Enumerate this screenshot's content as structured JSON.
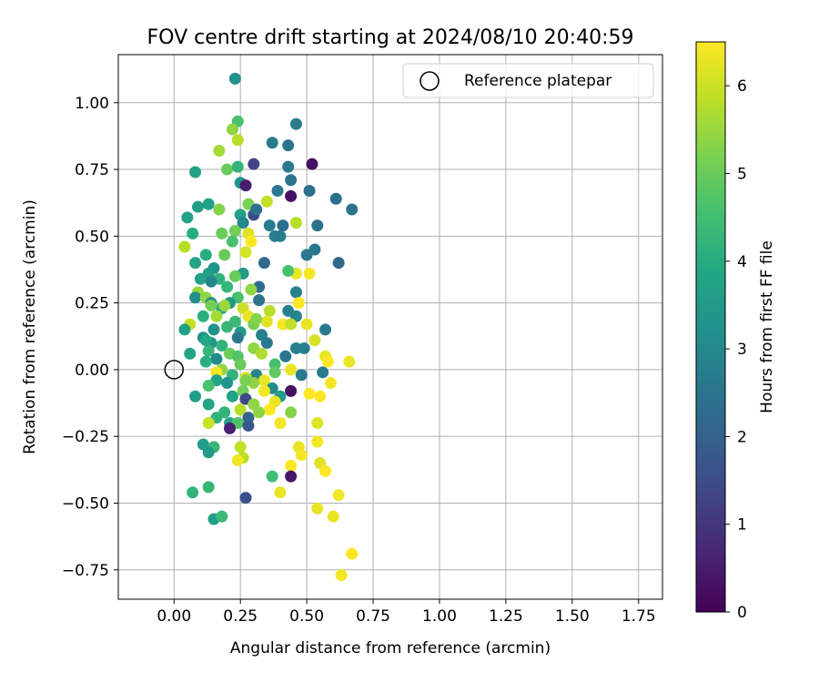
{
  "chart_data": {
    "type": "scatter",
    "title": "FOV centre drift starting at 2024/08/10 20:40:59",
    "xlabel": "Angular distance from reference (arcmin)",
    "ylabel": "Rotation from reference (arcmin)",
    "xlim": [
      -0.21,
      1.84
    ],
    "ylim": [
      -0.86,
      1.18
    ],
    "xticks": [
      0.0,
      0.25,
      0.5,
      0.75,
      1.0,
      1.25,
      1.5,
      1.75
    ],
    "xtick_labels": [
      "0.00",
      "0.25",
      "0.50",
      "0.75",
      "1.00",
      "1.25",
      "1.50",
      "1.75"
    ],
    "yticks": [
      -0.75,
      -0.5,
      -0.25,
      0.0,
      0.25,
      0.5,
      0.75,
      1.0
    ],
    "ytick_labels": [
      "−0.75",
      "−0.50",
      "−0.25",
      "0.00",
      "0.25",
      "0.50",
      "0.75",
      "1.00"
    ],
    "grid": true,
    "legend": {
      "position": "top-right",
      "entries": [
        "Reference platepar"
      ]
    },
    "reference_point": {
      "x": 0.0,
      "y": 0.0,
      "label": "Reference platepar"
    },
    "colorbar": {
      "label": "Hours from first FF file",
      "colormap": "viridis",
      "range": [
        0,
        6.5
      ],
      "ticks": [
        0,
        1,
        2,
        3,
        4,
        5,
        6
      ]
    },
    "points": [
      [
        0.23,
        1.09,
        3.2
      ],
      [
        0.24,
        0.93,
        4.6
      ],
      [
        0.22,
        0.9,
        5.4
      ],
      [
        0.24,
        0.86,
        5.8
      ],
      [
        0.46,
        0.92,
        2.7
      ],
      [
        0.37,
        0.85,
        2.7
      ],
      [
        0.43,
        0.84,
        2.5
      ],
      [
        0.17,
        0.82,
        5.6
      ],
      [
        0.52,
        0.77,
        0.3
      ],
      [
        0.3,
        0.77,
        1.3
      ],
      [
        0.2,
        0.75,
        5.0
      ],
      [
        0.24,
        0.76,
        4.2
      ],
      [
        0.08,
        0.74,
        3.7
      ],
      [
        0.43,
        0.76,
        2.6
      ],
      [
        0.44,
        0.71,
        2.5
      ],
      [
        0.25,
        0.7,
        3.3
      ],
      [
        0.27,
        0.69,
        0.5
      ],
      [
        0.39,
        0.67,
        2.6
      ],
      [
        0.51,
        0.67,
        2.4
      ],
      [
        0.44,
        0.65,
        0.3
      ],
      [
        0.61,
        0.64,
        2.4
      ],
      [
        0.67,
        0.6,
        2.5
      ],
      [
        0.35,
        0.63,
        5.9
      ],
      [
        0.28,
        0.62,
        5.2
      ],
      [
        0.13,
        0.62,
        3.7
      ],
      [
        0.09,
        0.61,
        3.6
      ],
      [
        0.3,
        0.58,
        1.5
      ],
      [
        0.17,
        0.6,
        5.3
      ],
      [
        0.25,
        0.58,
        3.7
      ],
      [
        0.31,
        0.6,
        2.4
      ],
      [
        0.05,
        0.57,
        3.7
      ],
      [
        0.26,
        0.55,
        3.0
      ],
      [
        0.46,
        0.55,
        5.8
      ],
      [
        0.41,
        0.54,
        2.3
      ],
      [
        0.54,
        0.54,
        2.4
      ],
      [
        0.36,
        0.54,
        2.7
      ],
      [
        0.23,
        0.52,
        5.1
      ],
      [
        0.18,
        0.51,
        5.0
      ],
      [
        0.07,
        0.51,
        4.0
      ],
      [
        0.28,
        0.51,
        6.2
      ],
      [
        0.38,
        0.5,
        2.8
      ],
      [
        0.4,
        0.5,
        2.7
      ],
      [
        0.29,
        0.48,
        6.5
      ],
      [
        0.04,
        0.46,
        5.8
      ],
      [
        0.53,
        0.45,
        2.6
      ],
      [
        0.12,
        0.43,
        4.0
      ],
      [
        0.19,
        0.43,
        5.0
      ],
      [
        0.27,
        0.44,
        6.1
      ],
      [
        0.5,
        0.43,
        2.6
      ],
      [
        0.62,
        0.4,
        2.2
      ],
      [
        0.08,
        0.4,
        3.8
      ],
      [
        0.34,
        0.4,
        2.2
      ],
      [
        0.15,
        0.38,
        3.4
      ],
      [
        0.46,
        0.36,
        6.3
      ],
      [
        0.51,
        0.36,
        6.4
      ],
      [
        0.43,
        0.37,
        4.6
      ],
      [
        0.13,
        0.36,
        3.6
      ],
      [
        0.26,
        0.36,
        3.5
      ],
      [
        0.23,
        0.35,
        5.0
      ],
      [
        0.1,
        0.34,
        3.7
      ],
      [
        0.17,
        0.34,
        4.2
      ],
      [
        0.14,
        0.33,
        3.0
      ],
      [
        0.32,
        0.31,
        2.3
      ],
      [
        0.29,
        0.3,
        5.4
      ],
      [
        0.46,
        0.29,
        2.8
      ],
      [
        0.09,
        0.29,
        5.5
      ],
      [
        0.08,
        0.27,
        3.2
      ],
      [
        0.12,
        0.27,
        5.4
      ],
      [
        0.24,
        0.27,
        4.6
      ],
      [
        0.21,
        0.25,
        3.5
      ],
      [
        0.32,
        0.26,
        2.5
      ],
      [
        0.47,
        0.25,
        6.5
      ],
      [
        0.14,
        0.25,
        3.1
      ],
      [
        0.26,
        0.23,
        6.0
      ],
      [
        0.18,
        0.23,
        3.9
      ],
      [
        0.36,
        0.22,
        5.8
      ],
      [
        0.43,
        0.22,
        2.8
      ],
      [
        0.28,
        0.2,
        6.3
      ],
      [
        0.46,
        0.2,
        2.9
      ],
      [
        0.11,
        0.2,
        4.1
      ],
      [
        0.16,
        0.2,
        5.6
      ],
      [
        0.23,
        0.18,
        4.4
      ],
      [
        0.35,
        0.18,
        6.2
      ],
      [
        0.3,
        0.17,
        5.2
      ],
      [
        0.41,
        0.17,
        6.4
      ],
      [
        0.44,
        0.17,
        5.9
      ],
      [
        0.5,
        0.17,
        6.3
      ],
      [
        0.06,
        0.17,
        5.9
      ],
      [
        0.2,
        0.16,
        4.3
      ],
      [
        0.04,
        0.15,
        3.7
      ],
      [
        0.57,
        0.15,
        2.7
      ],
      [
        0.15,
        0.15,
        3.3
      ],
      [
        0.25,
        0.14,
        3.6
      ],
      [
        0.33,
        0.13,
        2.8
      ],
      [
        0.11,
        0.12,
        3.2
      ],
      [
        0.24,
        0.12,
        2.6
      ],
      [
        0.53,
        0.11,
        6.1
      ],
      [
        0.14,
        0.1,
        3.4
      ],
      [
        0.35,
        0.1,
        2.6
      ],
      [
        0.18,
        0.09,
        4.2
      ],
      [
        0.46,
        0.08,
        2.8
      ],
      [
        0.49,
        0.08,
        2.8
      ],
      [
        0.3,
        0.08,
        5.4
      ],
      [
        0.13,
        0.07,
        4.3
      ],
      [
        0.06,
        0.06,
        3.8
      ],
      [
        0.21,
        0.06,
        5.0
      ],
      [
        0.33,
        0.06,
        5.7
      ],
      [
        0.42,
        0.05,
        2.5
      ],
      [
        0.57,
        0.05,
        6.3
      ],
      [
        0.24,
        0.05,
        4.7
      ],
      [
        0.16,
        0.04,
        3.1
      ],
      [
        0.12,
        0.03,
        4.1
      ],
      [
        0.25,
        0.02,
        5.0
      ],
      [
        0.38,
        0.02,
        4.6
      ],
      [
        0.58,
        0.03,
        6.5
      ],
      [
        0.66,
        0.03,
        6.3
      ],
      [
        0.18,
        0.0,
        5.4
      ],
      [
        0.44,
        0.0,
        6.3
      ],
      [
        0.56,
        -0.01,
        2.7
      ],
      [
        0.16,
        -0.01,
        6.4
      ],
      [
        0.38,
        -0.01,
        4.9
      ],
      [
        0.31,
        -0.02,
        2.9
      ],
      [
        0.22,
        -0.02,
        4.2
      ],
      [
        0.27,
        -0.03,
        6.1
      ],
      [
        0.34,
        -0.04,
        6.3
      ],
      [
        0.48,
        -0.02,
        2.7
      ],
      [
        0.59,
        -0.05,
        6.4
      ],
      [
        0.16,
        -0.04,
        3.8
      ],
      [
        0.2,
        -0.05,
        3.3
      ],
      [
        0.3,
        -0.05,
        5.4
      ],
      [
        0.13,
        -0.06,
        4.6
      ],
      [
        0.37,
        -0.07,
        3.1
      ],
      [
        0.26,
        -0.08,
        5.1
      ],
      [
        0.44,
        -0.08,
        0.3
      ],
      [
        0.34,
        -0.08,
        6.4
      ],
      [
        0.51,
        -0.09,
        6.5
      ],
      [
        0.4,
        -0.1,
        3.6
      ],
      [
        0.08,
        -0.1,
        3.6
      ],
      [
        0.22,
        -0.1,
        3.8
      ],
      [
        0.55,
        -0.1,
        6.5
      ],
      [
        0.27,
        -0.11,
        1.4
      ],
      [
        0.38,
        -0.12,
        6.3
      ],
      [
        0.13,
        -0.13,
        3.8
      ],
      [
        0.3,
        -0.13,
        5.4
      ],
      [
        0.36,
        -0.15,
        6.5
      ],
      [
        0.25,
        -0.15,
        5.8
      ],
      [
        0.19,
        -0.16,
        4.2
      ],
      [
        0.32,
        -0.16,
        5.4
      ],
      [
        0.44,
        -0.16,
        5.3
      ],
      [
        0.16,
        -0.18,
        4.2
      ],
      [
        0.28,
        -0.18,
        2.1
      ],
      [
        0.21,
        -0.2,
        3.8
      ],
      [
        0.13,
        -0.2,
        6.0
      ],
      [
        0.4,
        -0.2,
        6.4
      ],
      [
        0.24,
        -0.2,
        4.7
      ],
      [
        0.54,
        -0.2,
        6.2
      ],
      [
        0.28,
        -0.21,
        1.8
      ],
      [
        0.21,
        -0.22,
        0.6
      ],
      [
        0.54,
        -0.27,
        6.4
      ],
      [
        0.11,
        -0.28,
        3.6
      ],
      [
        0.15,
        -0.29,
        4.3
      ],
      [
        0.25,
        -0.29,
        5.9
      ],
      [
        0.47,
        -0.29,
        6.3
      ],
      [
        0.13,
        -0.31,
        3.5
      ],
      [
        0.48,
        -0.32,
        6.4
      ],
      [
        0.26,
        -0.33,
        5.8
      ],
      [
        0.24,
        -0.34,
        6.4
      ],
      [
        0.44,
        -0.36,
        6.5
      ],
      [
        0.55,
        -0.35,
        6.2
      ],
      [
        0.57,
        -0.38,
        6.5
      ],
      [
        0.44,
        -0.4,
        0.4
      ],
      [
        0.37,
        -0.4,
        4.5
      ],
      [
        0.13,
        -0.44,
        4.3
      ],
      [
        0.07,
        -0.46,
        4.2
      ],
      [
        0.4,
        -0.46,
        6.3
      ],
      [
        0.27,
        -0.48,
        1.6
      ],
      [
        0.62,
        -0.47,
        6.4
      ],
      [
        0.54,
        -0.52,
        6.3
      ],
      [
        0.6,
        -0.55,
        6.3
      ],
      [
        0.15,
        -0.56,
        3.6
      ],
      [
        0.18,
        -0.55,
        4.4
      ],
      [
        0.67,
        -0.69,
        6.5
      ],
      [
        0.63,
        -0.77,
        6.4
      ],
      [
        0.12,
        0.11,
        3.9
      ],
      [
        0.2,
        0.31,
        4.3
      ],
      [
        0.22,
        0.48,
        4.6
      ],
      [
        0.19,
        0.24,
        5.5
      ],
      [
        0.31,
        0.19,
        5.3
      ],
      [
        0.14,
        0.24,
        5.1
      ],
      [
        0.27,
        -0.04,
        5.2
      ]
    ]
  }
}
